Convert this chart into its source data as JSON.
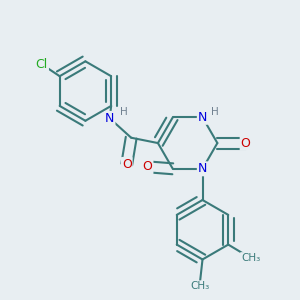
{
  "bg_color": "#e8eef2",
  "bond_color": "#3a7a7a",
  "bond_width": 1.5,
  "atom_colors": {
    "N": "#0000dd",
    "O": "#cc0000",
    "Cl": "#22aa22",
    "C": "#3a7a7a",
    "H": "#708090"
  },
  "font_size": 8.5,
  "fig_size": [
    3.0,
    3.0
  ],
  "dpi": 100
}
